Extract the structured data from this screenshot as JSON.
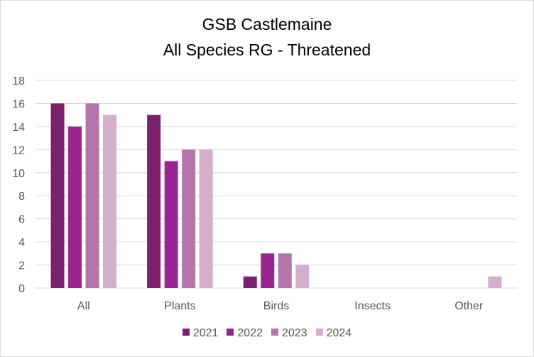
{
  "chart_data": {
    "type": "bar",
    "title": "GSB Castlemaine",
    "subtitle": "All Species RG - Threatened",
    "categories": [
      "All",
      "Plants",
      "Birds",
      "Insects",
      "Other"
    ],
    "series": [
      {
        "name": "2021",
        "color": "#7b1f6f",
        "values": [
          16,
          15,
          1,
          0,
          0
        ]
      },
      {
        "name": "2022",
        "color": "#9a2591",
        "values": [
          14,
          11,
          3,
          0,
          0
        ]
      },
      {
        "name": "2023",
        "color": "#b276ad",
        "values": [
          16,
          12,
          3,
          0,
          0
        ]
      },
      {
        "name": "2024",
        "color": "#d3aece",
        "values": [
          15,
          12,
          2,
          0,
          1
        ]
      }
    ],
    "ylim": [
      0,
      18
    ],
    "yticks": [
      0,
      2,
      4,
      6,
      8,
      10,
      12,
      14,
      16,
      18
    ],
    "grid": true,
    "legend_position": "bottom"
  }
}
